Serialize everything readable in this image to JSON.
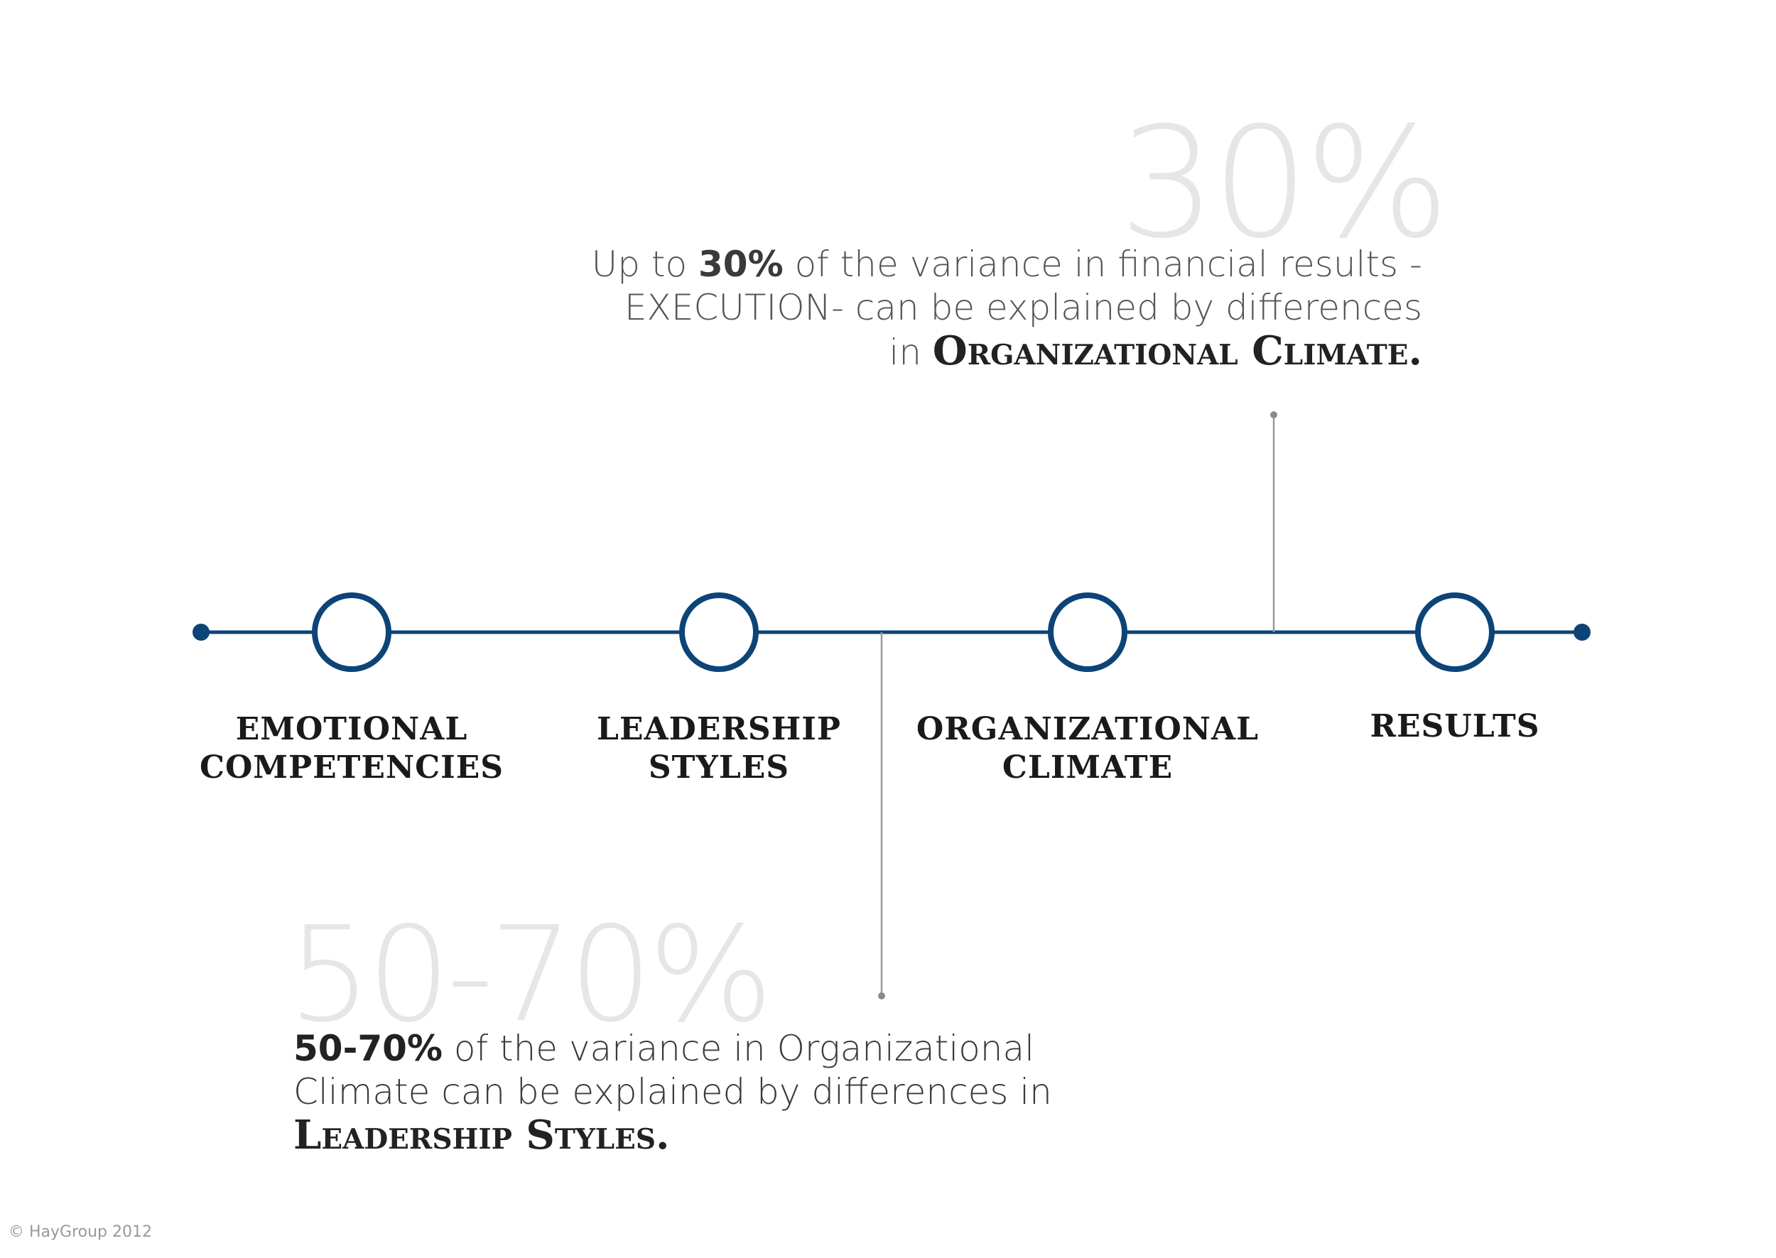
{
  "nodes": [
    {
      "id": "emotional-competencies",
      "line1": "EMOTIONAL",
      "line2": "COMPETENCIES"
    },
    {
      "id": "leadership-styles",
      "line1": "LEADERSHIP",
      "line2": "STYLES"
    },
    {
      "id": "organizational-climate",
      "line1": "ORGANIZATIONAL",
      "line2": "CLIMATE"
    },
    {
      "id": "results",
      "line1": "RESULTS",
      "line2": ""
    }
  ],
  "top_callout": {
    "big_value": "30%",
    "line1_pre": "Up to ",
    "line1_bold": "30%",
    "line1_post": " of the variance in financial results -",
    "line2": "EXECUTION- can be explained by differences",
    "line3_pre": "in ",
    "line3_sc": "Organizational Climate."
  },
  "bottom_callout": {
    "big_value": "50-70%",
    "line1_bold": "50-70%",
    "line1_post": " of the variance in Organizational",
    "line2": "Climate can be explained by differences in",
    "line3_sc": "Leadership Styles."
  },
  "colors": {
    "timeline": "#0d4478",
    "connector": "#9a9a9a"
  },
  "copyright": "© HayGroup 2012"
}
